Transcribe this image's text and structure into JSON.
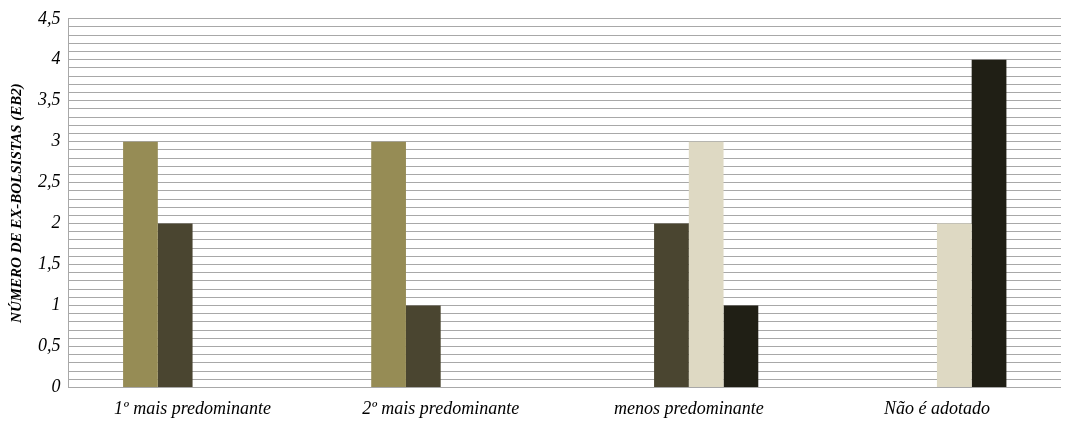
{
  "chart_data": {
    "type": "bar",
    "ylabel": "NÚMERO DE EX-BOLSISTAS (EB2)",
    "categories": [
      "1º mais predominante",
      "2º mais predominante",
      "menos predominante",
      "Não é adotado"
    ],
    "series": [
      {
        "color": "#968c55",
        "values": [
          3,
          3,
          0,
          0
        ]
      },
      {
        "color": "#4a4530",
        "values": [
          2,
          1,
          2,
          0
        ]
      },
      {
        "color": "#ded9c3",
        "values": [
          0,
          0,
          3,
          2
        ]
      },
      {
        "color": "#201f15",
        "values": [
          0,
          0,
          1,
          4
        ]
      }
    ],
    "ylim": [
      0,
      4.5
    ],
    "yticks": [
      {
        "value": 0,
        "label": "0"
      },
      {
        "value": 0.1,
        "label": null
      },
      {
        "value": 0.2,
        "label": null
      },
      {
        "value": 0.3,
        "label": null
      },
      {
        "value": 0.4,
        "label": null
      },
      {
        "value": 0.5,
        "label": "0,5"
      },
      {
        "value": 0.6,
        "label": null
      },
      {
        "value": 0.7,
        "label": null
      },
      {
        "value": 0.8,
        "label": null
      },
      {
        "value": 0.9,
        "label": null
      },
      {
        "value": 1,
        "label": "1"
      },
      {
        "value": 1.1,
        "label": null
      },
      {
        "value": 1.2,
        "label": null
      },
      {
        "value": 1.3,
        "label": null
      },
      {
        "value": 1.4,
        "label": null
      },
      {
        "value": 1.5,
        "label": "1,5"
      },
      {
        "value": 1.6,
        "label": null
      },
      {
        "value": 1.7,
        "label": null
      },
      {
        "value": 1.8,
        "label": null
      },
      {
        "value": 1.9,
        "label": null
      },
      {
        "value": 2,
        "label": "2"
      },
      {
        "value": 2.1,
        "label": null
      },
      {
        "value": 2.2,
        "label": null
      },
      {
        "value": 2.3,
        "label": null
      },
      {
        "value": 2.4,
        "label": null
      },
      {
        "value": 2.5,
        "label": "2,5"
      },
      {
        "value": 2.6,
        "label": null
      },
      {
        "value": 2.7,
        "label": null
      },
      {
        "value": 2.8,
        "label": null
      },
      {
        "value": 2.9,
        "label": null
      },
      {
        "value": 3,
        "label": "3"
      },
      {
        "value": 3.1,
        "label": null
      },
      {
        "value": 3.2,
        "label": null
      },
      {
        "value": 3.3,
        "label": null
      },
      {
        "value": 3.4,
        "label": null
      },
      {
        "value": 3.5,
        "label": "3,5"
      },
      {
        "value": 3.6,
        "label": null
      },
      {
        "value": 3.7,
        "label": null
      },
      {
        "value": 3.8,
        "label": null
      },
      {
        "value": 3.9,
        "label": null
      },
      {
        "value": 4,
        "label": "4"
      },
      {
        "value": 4.1,
        "label": null
      },
      {
        "value": 4.2,
        "label": null
      },
      {
        "value": 4.3,
        "label": null
      },
      {
        "value": 4.4,
        "label": null
      },
      {
        "value": 4.5,
        "label": "4,5"
      }
    ],
    "grid": "y",
    "legend": false
  }
}
